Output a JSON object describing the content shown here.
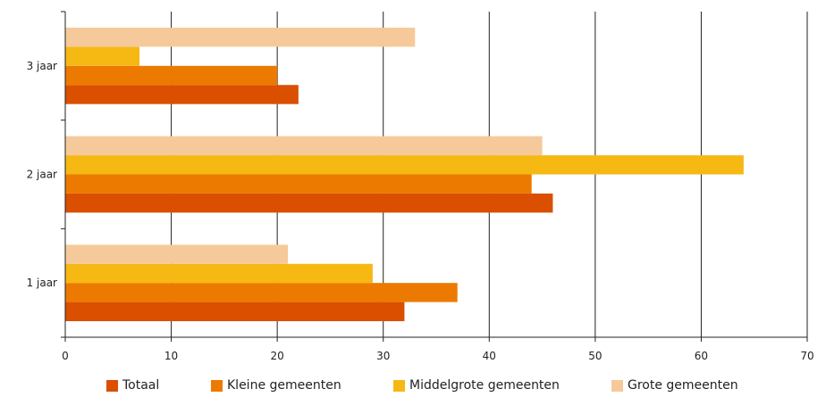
{
  "chart_data": {
    "type": "bar",
    "orientation": "horizontal",
    "categories": [
      "3 jaar",
      "2 jaar",
      "1 jaar"
    ],
    "series": [
      {
        "name": "Totaal",
        "color": "#DA4F00",
        "values": [
          22,
          46,
          32
        ]
      },
      {
        "name": "Kleine gemeenten",
        "color": "#EC7A00",
        "values": [
          20,
          44,
          37
        ]
      },
      {
        "name": "Middelgrote gemeenten",
        "color": "#F6B812",
        "values": [
          7,
          64,
          29
        ]
      },
      {
        "name": "Grote gemeenten",
        "color": "#F6C99B",
        "values": [
          33,
          45,
          21
        ]
      }
    ],
    "xlim": [
      0,
      70
    ],
    "x_ticks": [
      0,
      10,
      20,
      30,
      40,
      50,
      60,
      70
    ],
    "x_tick_labels": [
      "0",
      "10",
      "20",
      "30",
      "40",
      "50",
      "60",
      "70"
    ],
    "grid": "vertical",
    "legend_position": "bottom"
  }
}
